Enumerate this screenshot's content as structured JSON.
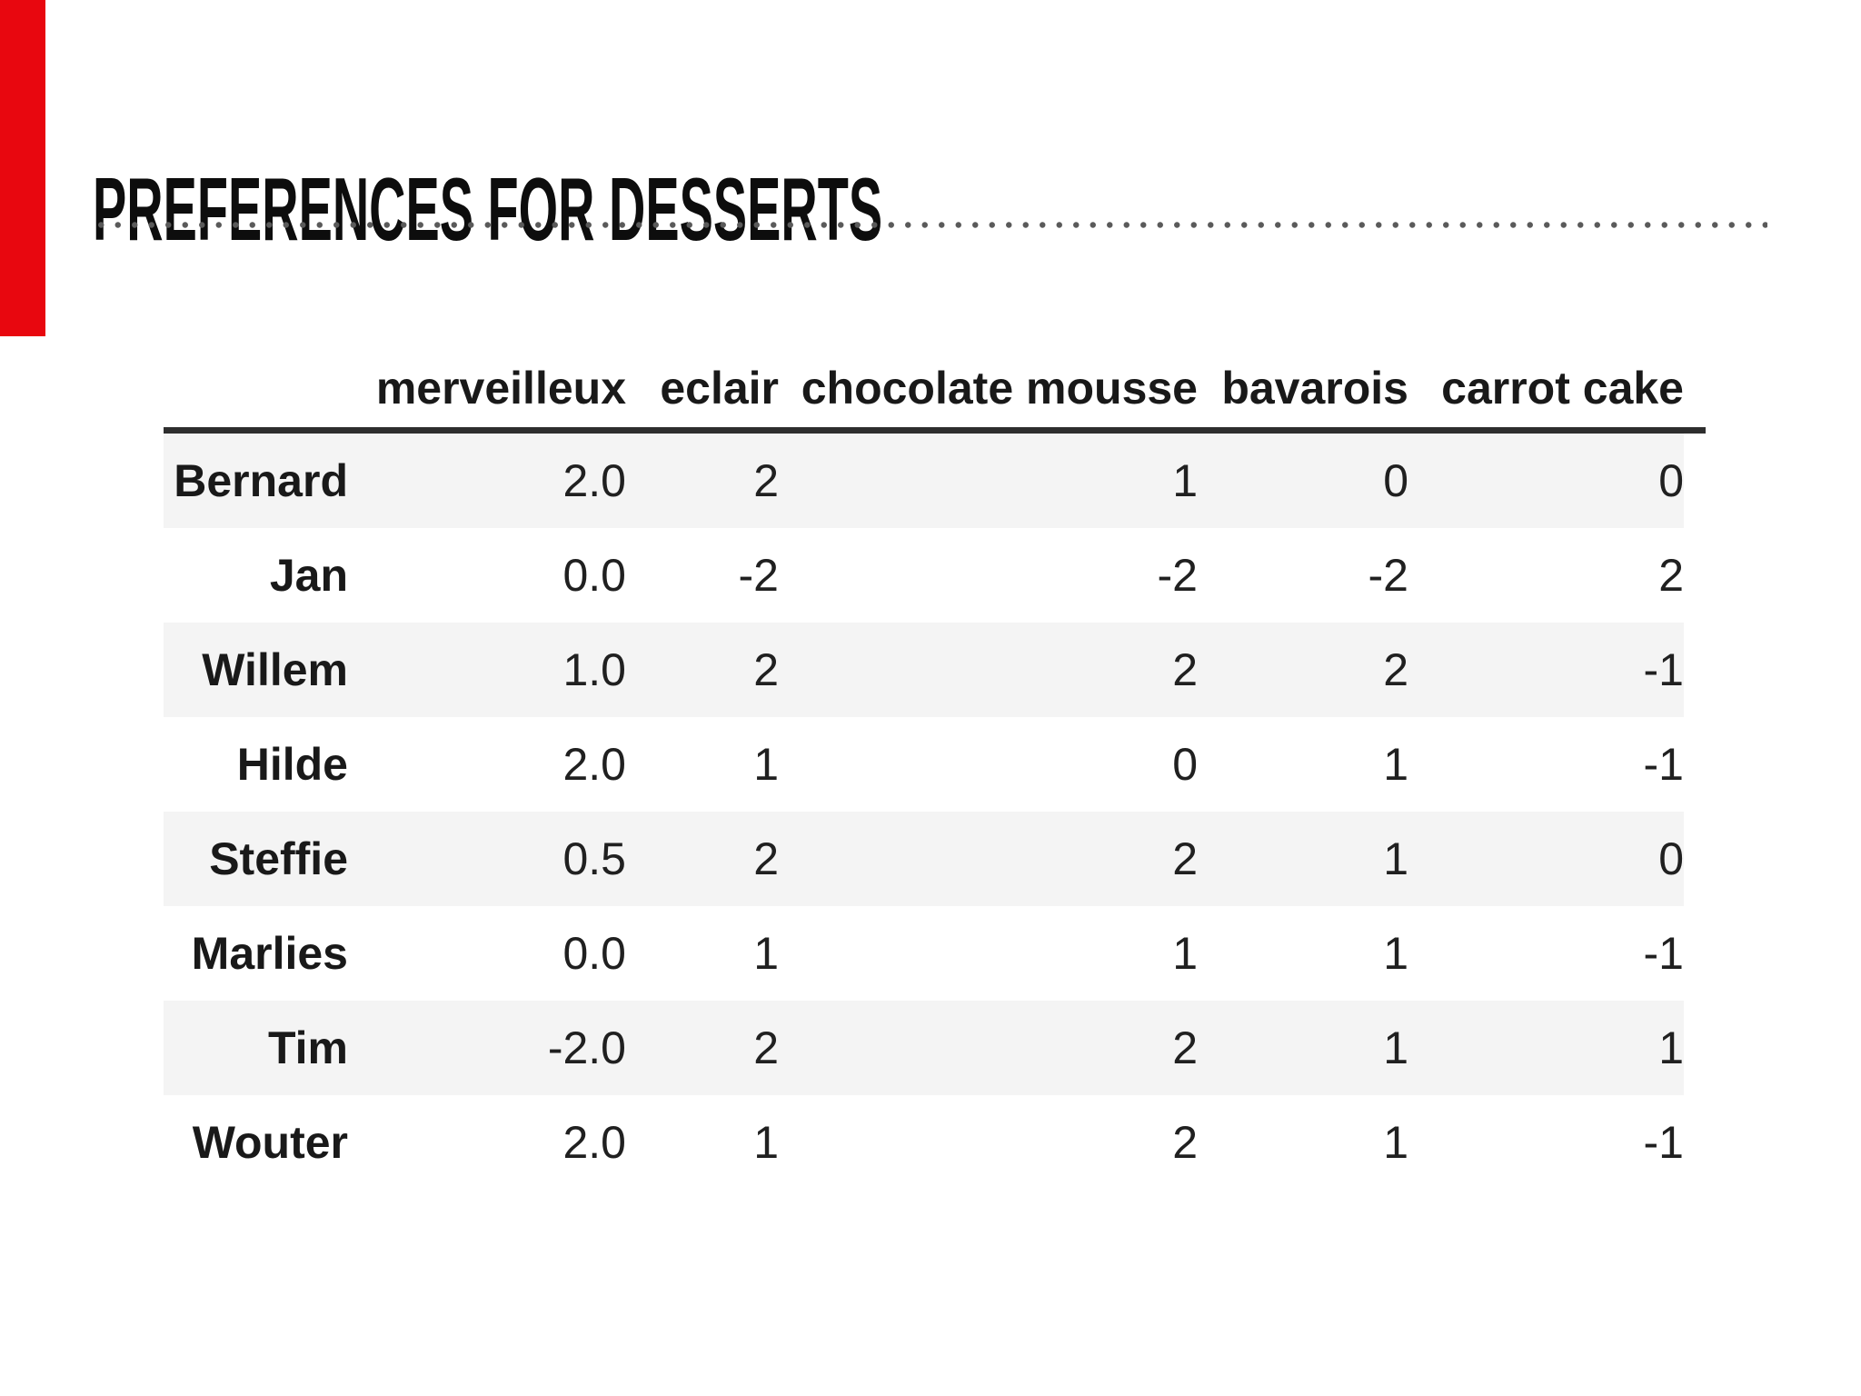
{
  "slide": {
    "title": "PREFERENCES FOR DESSERTS",
    "accent_color": "#e8070f",
    "table": {
      "columns": [
        "merveilleux",
        "eclair",
        "chocolate mousse",
        "bavarois",
        "carrot cake"
      ],
      "rows": [
        {
          "name": "Bernard",
          "values": [
            "2.0",
            "2",
            "1",
            "0",
            "0"
          ]
        },
        {
          "name": "Jan",
          "values": [
            "0.0",
            "-2",
            "-2",
            "-2",
            "2"
          ]
        },
        {
          "name": "Willem",
          "values": [
            "1.0",
            "2",
            "2",
            "2",
            "-1"
          ]
        },
        {
          "name": "Hilde",
          "values": [
            "2.0",
            "1",
            "0",
            "1",
            "-1"
          ]
        },
        {
          "name": "Steffie",
          "values": [
            "0.5",
            "2",
            "2",
            "1",
            "0"
          ]
        },
        {
          "name": "Marlies",
          "values": [
            "0.0",
            "1",
            "1",
            "1",
            "-1"
          ]
        },
        {
          "name": "Tim",
          "values": [
            "-2.0",
            "2",
            "2",
            "1",
            "1"
          ]
        },
        {
          "name": "Wouter",
          "values": [
            "2.0",
            "1",
            "2",
            "1",
            "-1"
          ]
        }
      ]
    }
  },
  "chart_data": {
    "type": "table",
    "title": "PREFERENCES FOR DESSERTS",
    "columns": [
      "merveilleux",
      "eclair",
      "chocolate mousse",
      "bavarois",
      "carrot cake"
    ],
    "row_labels": [
      "Bernard",
      "Jan",
      "Willem",
      "Hilde",
      "Steffie",
      "Marlies",
      "Tim",
      "Wouter"
    ],
    "values": [
      [
        2.0,
        2,
        1,
        0,
        0
      ],
      [
        0.0,
        -2,
        -2,
        -2,
        2
      ],
      [
        1.0,
        2,
        2,
        2,
        -1
      ],
      [
        2.0,
        1,
        0,
        1,
        -1
      ],
      [
        0.5,
        2,
        2,
        1,
        0
      ],
      [
        0.0,
        1,
        1,
        1,
        -1
      ],
      [
        -2.0,
        2,
        2,
        1,
        1
      ],
      [
        2.0,
        1,
        2,
        1,
        -1
      ]
    ]
  }
}
